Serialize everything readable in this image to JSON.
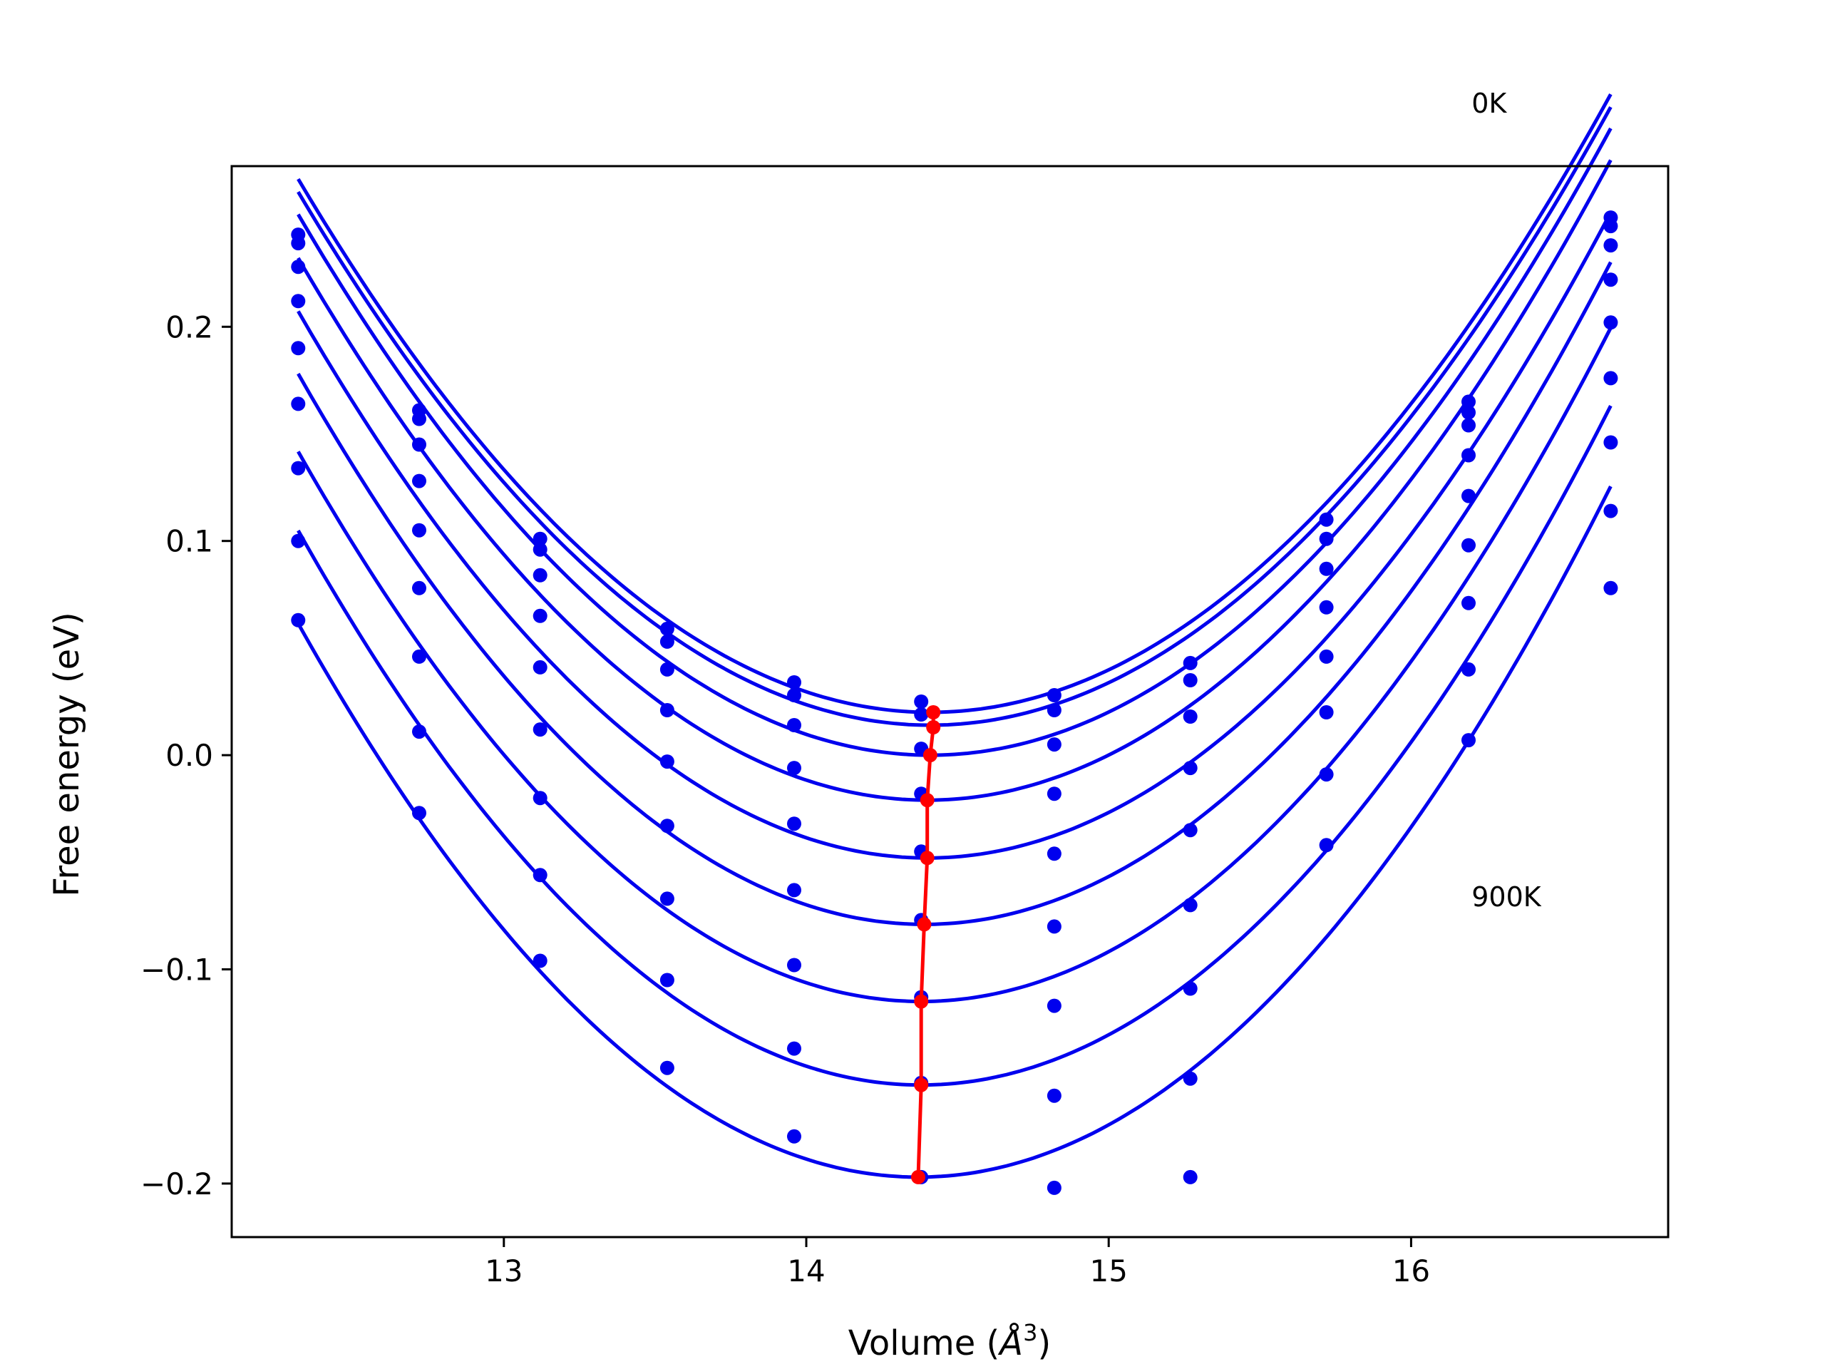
{
  "chart_data": {
    "type": "scatter",
    "title": "",
    "xlabel_text": "Volume (",
    "xlabel_unit": "Å",
    "xlabel_sup": "3",
    "xlabel_close": ")",
    "ylabel": "Free energy (eV)",
    "xlim": [
      12.1,
      16.85
    ],
    "ylim": [
      -0.225,
      0.275
    ],
    "xticks": [
      13,
      14,
      15,
      16
    ],
    "yticks": [
      -0.2,
      -0.1,
      0.0,
      0.1,
      0.2
    ],
    "xtick_labels": [
      "13",
      "14",
      "15",
      "16"
    ],
    "ytick_labels": [
      "−0.2",
      "−0.1",
      "0.0",
      "0.1",
      "0.2"
    ],
    "grid": false,
    "annotations": [
      {
        "text": "0K",
        "x": 16.2,
        "y": 0.3
      },
      {
        "text": "900K",
        "x": 16.2,
        "y": -0.0705
      }
    ],
    "point_color": "#0000ee",
    "curve_color": "#0000ee",
    "min_line_color": "#ff0000",
    "volumes": [
      12.32,
      12.72,
      13.12,
      13.54,
      13.96,
      14.38,
      14.82,
      15.27,
      15.72,
      16.19,
      16.66
    ],
    "series": [
      {
        "fit": {
          "v0": 14.41,
          "e0": 0.02,
          "a": 0.057
        },
        "points": [
          0.243,
          0.161,
          0.101,
          0.059,
          0.034,
          0.025,
          0.028,
          0.043,
          0.11,
          0.165,
          0.251
        ]
      },
      {
        "fit": {
          "v0": 14.41,
          "e0": 0.014,
          "a": 0.057
        },
        "points": [
          0.239,
          0.157,
          0.096,
          0.053,
          0.028,
          0.019,
          0.021,
          0.035,
          0.101,
          0.16,
          0.247
        ]
      },
      {
        "fit": {
          "v0": 14.41,
          "e0": 0.0,
          "a": 0.0578
        },
        "points": [
          0.228,
          0.145,
          0.084,
          0.04,
          0.014,
          0.003,
          0.005,
          0.018,
          0.087,
          0.154,
          0.238
        ]
      },
      {
        "fit": {
          "v0": 14.4,
          "e0": -0.021,
          "a": 0.0585
        },
        "points": [
          0.212,
          0.128,
          0.065,
          0.021,
          -0.006,
          -0.018,
          -0.018,
          -0.006,
          0.069,
          0.14,
          0.222
        ]
      },
      {
        "fit": {
          "v0": 14.4,
          "e0": -0.048,
          "a": 0.059
        },
        "points": [
          0.19,
          0.105,
          0.041,
          -0.003,
          -0.032,
          -0.045,
          -0.046,
          -0.035,
          0.046,
          0.121,
          0.202
        ]
      },
      {
        "fit": {
          "v0": 14.39,
          "e0": -0.079,
          "a": 0.06
        },
        "points": [
          0.164,
          0.078,
          0.012,
          -0.033,
          -0.063,
          -0.077,
          -0.08,
          -0.07,
          0.02,
          0.098,
          0.176
        ]
      },
      {
        "fit": {
          "v0": 14.38,
          "e0": -0.115,
          "a": 0.0605
        },
        "points": [
          0.134,
          0.046,
          -0.02,
          -0.067,
          -0.098,
          -0.113,
          -0.117,
          -0.109,
          -0.009,
          0.071,
          0.146
        ]
      },
      {
        "fit": {
          "v0": 14.38,
          "e0": -0.154,
          "a": 0.061
        },
        "points": [
          0.1,
          0.011,
          -0.056,
          -0.105,
          -0.137,
          -0.153,
          -0.159,
          -0.151,
          -0.042,
          0.04,
          0.114
        ]
      },
      {
        "fit": {
          "v0": 14.37,
          "e0": -0.197,
          "a": 0.0615
        },
        "points": [
          0.063,
          -0.027,
          -0.096,
          -0.146,
          -0.178,
          -0.197,
          -0.202,
          -0.197,
          null,
          0.007,
          0.078
        ]
      }
    ],
    "minima": [
      {
        "v": 14.42,
        "e": 0.02
      },
      {
        "v": 14.42,
        "e": 0.013
      },
      {
        "v": 14.41,
        "e": 0.0
      },
      {
        "v": 14.4,
        "e": -0.021
      },
      {
        "v": 14.4,
        "e": -0.048
      },
      {
        "v": 14.39,
        "e": -0.079
      },
      {
        "v": 14.38,
        "e": -0.115
      },
      {
        "v": 14.38,
        "e": -0.154
      },
      {
        "v": 14.37,
        "e": -0.197
      }
    ]
  }
}
